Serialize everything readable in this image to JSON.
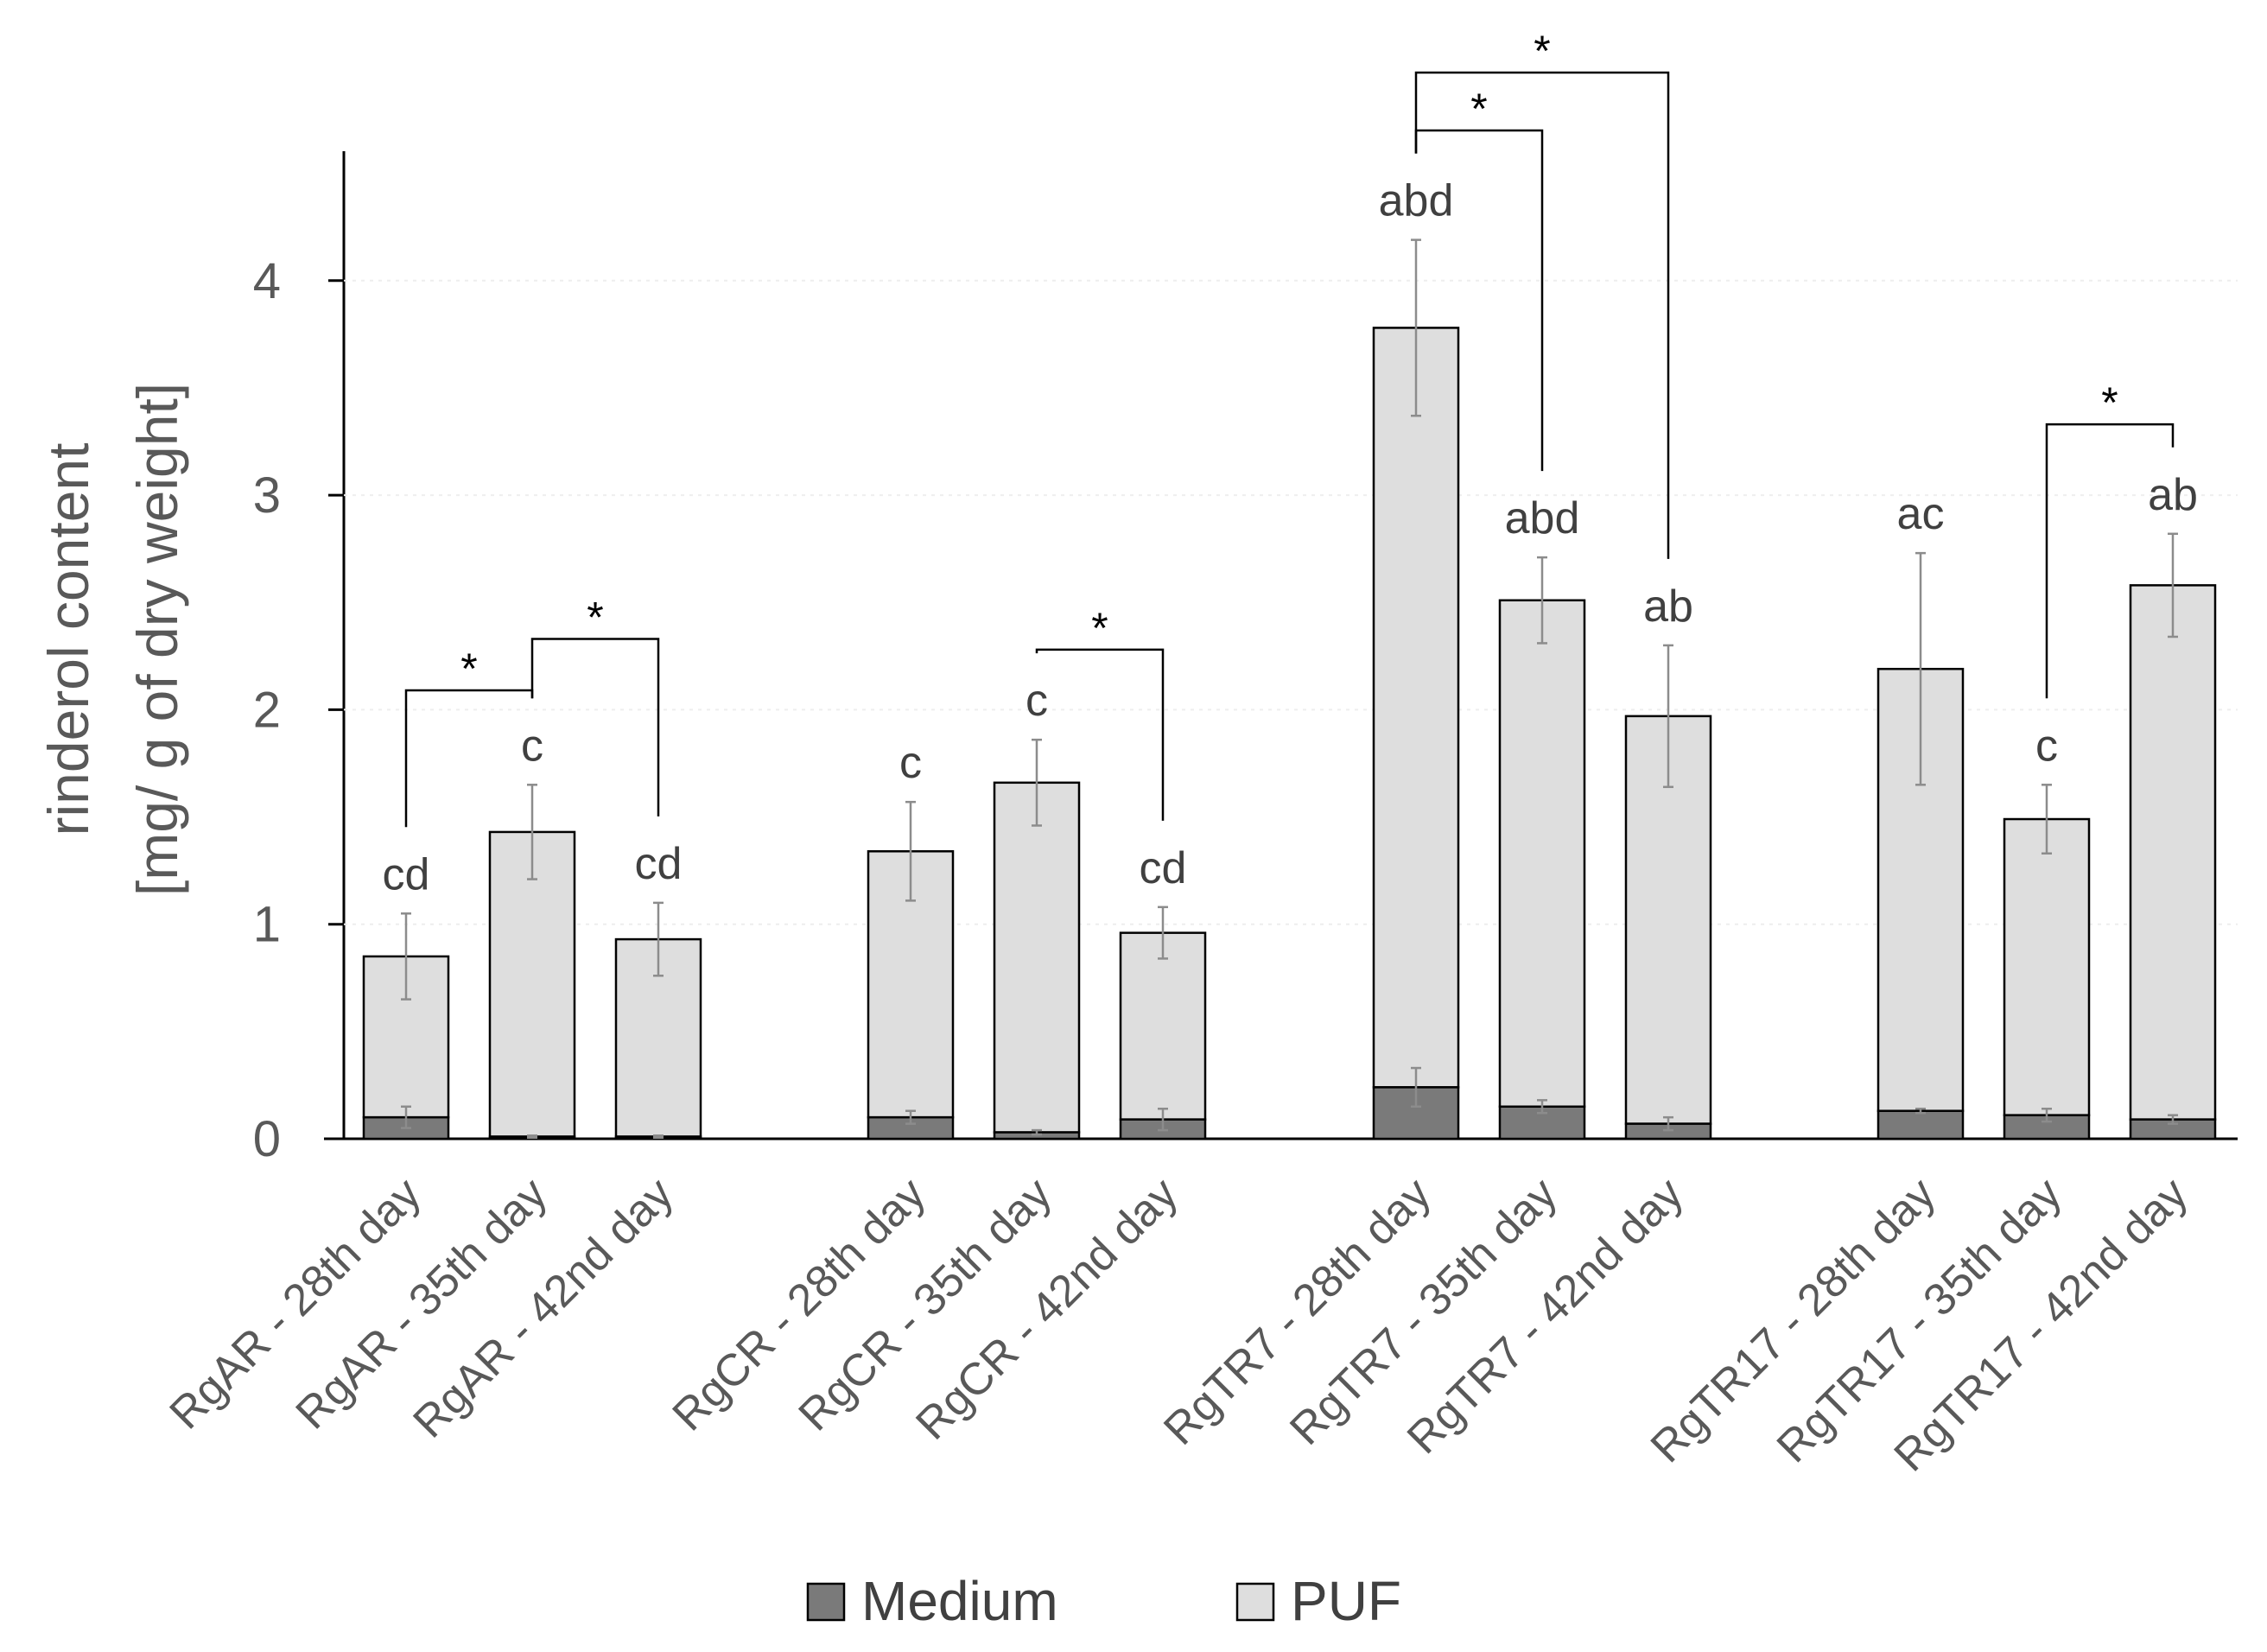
{
  "chart_data": {
    "type": "bar",
    "stacked": true,
    "title": "",
    "xlabel": "",
    "ylabel_lines": [
      "rinderol content",
      "[mg/ g of dry weight]"
    ],
    "ylim": [
      0,
      4.6
    ],
    "yticks": [
      0,
      1,
      2,
      3,
      4
    ],
    "ytick_labels": [
      "0",
      "1",
      "2",
      "3",
      "4"
    ],
    "colors": {
      "Medium": "#7a7a7a",
      "PUF": "#dedede",
      "edge": "#000000",
      "error": "#8c8c8c"
    },
    "categories": [
      "RgAR - 28th day",
      "RgAR - 35th day",
      "RgAR - 42nd day",
      "RgCR - 28th day",
      "RgCR - 35th day",
      "RgCR - 42nd day",
      "RgTR7 - 28th day",
      "RgTR7 - 35th day",
      "RgTR7 - 42nd day",
      "RgTR17 - 28th day",
      "RgTR17 - 35th day",
      "RgTR17 - 42nd day"
    ],
    "series": [
      {
        "name": "Medium",
        "values": [
          0.1,
          0.01,
          0.01,
          0.1,
          0.03,
          0.09,
          0.24,
          0.15,
          0.07,
          0.13,
          0.11,
          0.09
        ],
        "errors": [
          0.05,
          0.005,
          0.005,
          0.03,
          0.01,
          0.05,
          0.09,
          0.03,
          0.03,
          0.01,
          0.03,
          0.02
        ]
      },
      {
        "name": "PUF",
        "values": [
          0.75,
          1.42,
          0.92,
          1.24,
          1.63,
          0.87,
          3.54,
          2.36,
          1.9,
          2.06,
          1.38,
          2.49
        ],
        "errors": [
          0.2,
          0.22,
          0.17,
          0.23,
          0.2,
          0.12,
          0.41,
          0.2,
          0.33,
          0.54,
          0.16,
          0.24
        ]
      }
    ],
    "significance_letters": [
      "cd",
      "c",
      "cd",
      "c",
      "c",
      "cd",
      "abd",
      "abd",
      "ab",
      "ac",
      "c",
      "ab"
    ],
    "comparisons": [
      {
        "from": 0,
        "to": 1,
        "y": 2.09,
        "label": "*"
      },
      {
        "from": 1,
        "to": 2,
        "y": 2.33,
        "label": "*"
      },
      {
        "from": 4,
        "to": 5,
        "y": 2.28,
        "label": "*"
      },
      {
        "from": 6,
        "to": 7,
        "y": 4.7,
        "label": "*"
      },
      {
        "from": 6,
        "to": 8,
        "y": 4.97,
        "label": "*"
      },
      {
        "from": 10,
        "to": 11,
        "y": 3.33,
        "label": "*"
      }
    ],
    "legend": [
      "Medium",
      "PUF"
    ],
    "legend_position": "bottom"
  }
}
